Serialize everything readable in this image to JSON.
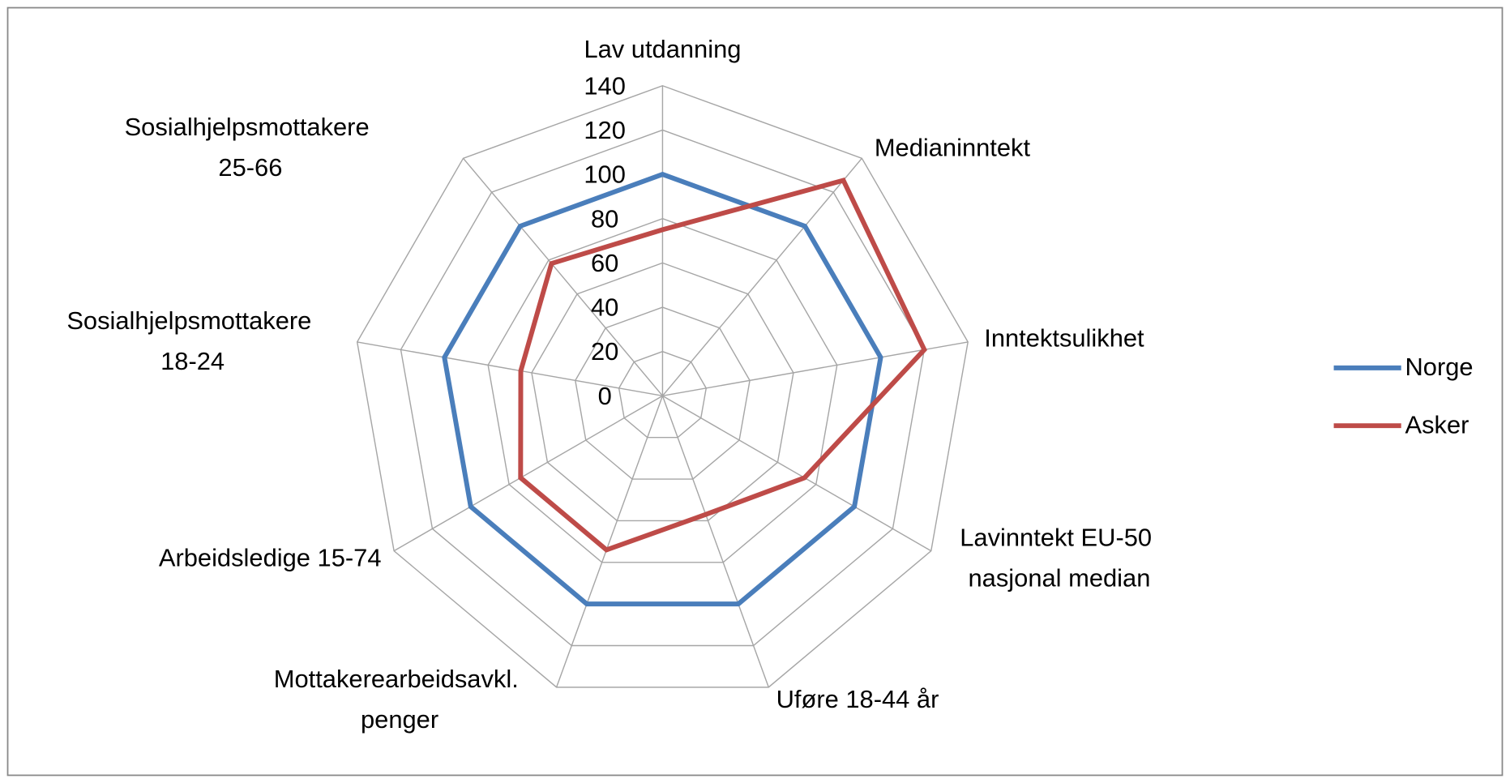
{
  "chart_data": {
    "type": "radar",
    "categories": [
      "Lav utdanning",
      "Medianinntekt",
      "Inntektsulikhet",
      "Lavinntekt EU-50 nasjonal median",
      "Uføre 18-44 år",
      "Mottakerearbeidsavkl. penger",
      "Arbeidsledige 15-74",
      "Sosialhjelpsmottakere 18-24",
      "Sosialhjelpsmottakere 25-66"
    ],
    "series": [
      {
        "name": "Norge",
        "color": "#4a7ebb",
        "values": [
          100,
          100,
          100,
          100,
          100,
          100,
          100,
          100,
          100
        ]
      },
      {
        "name": "Asker",
        "color": "#be4b48",
        "values": [
          75,
          127,
          120,
          74,
          57,
          74,
          74,
          65,
          78
        ]
      }
    ],
    "ylim": [
      0,
      140
    ],
    "yticks": [
      0,
      20,
      40,
      60,
      80,
      100,
      120,
      140
    ],
    "grid": true,
    "legend": "right"
  }
}
